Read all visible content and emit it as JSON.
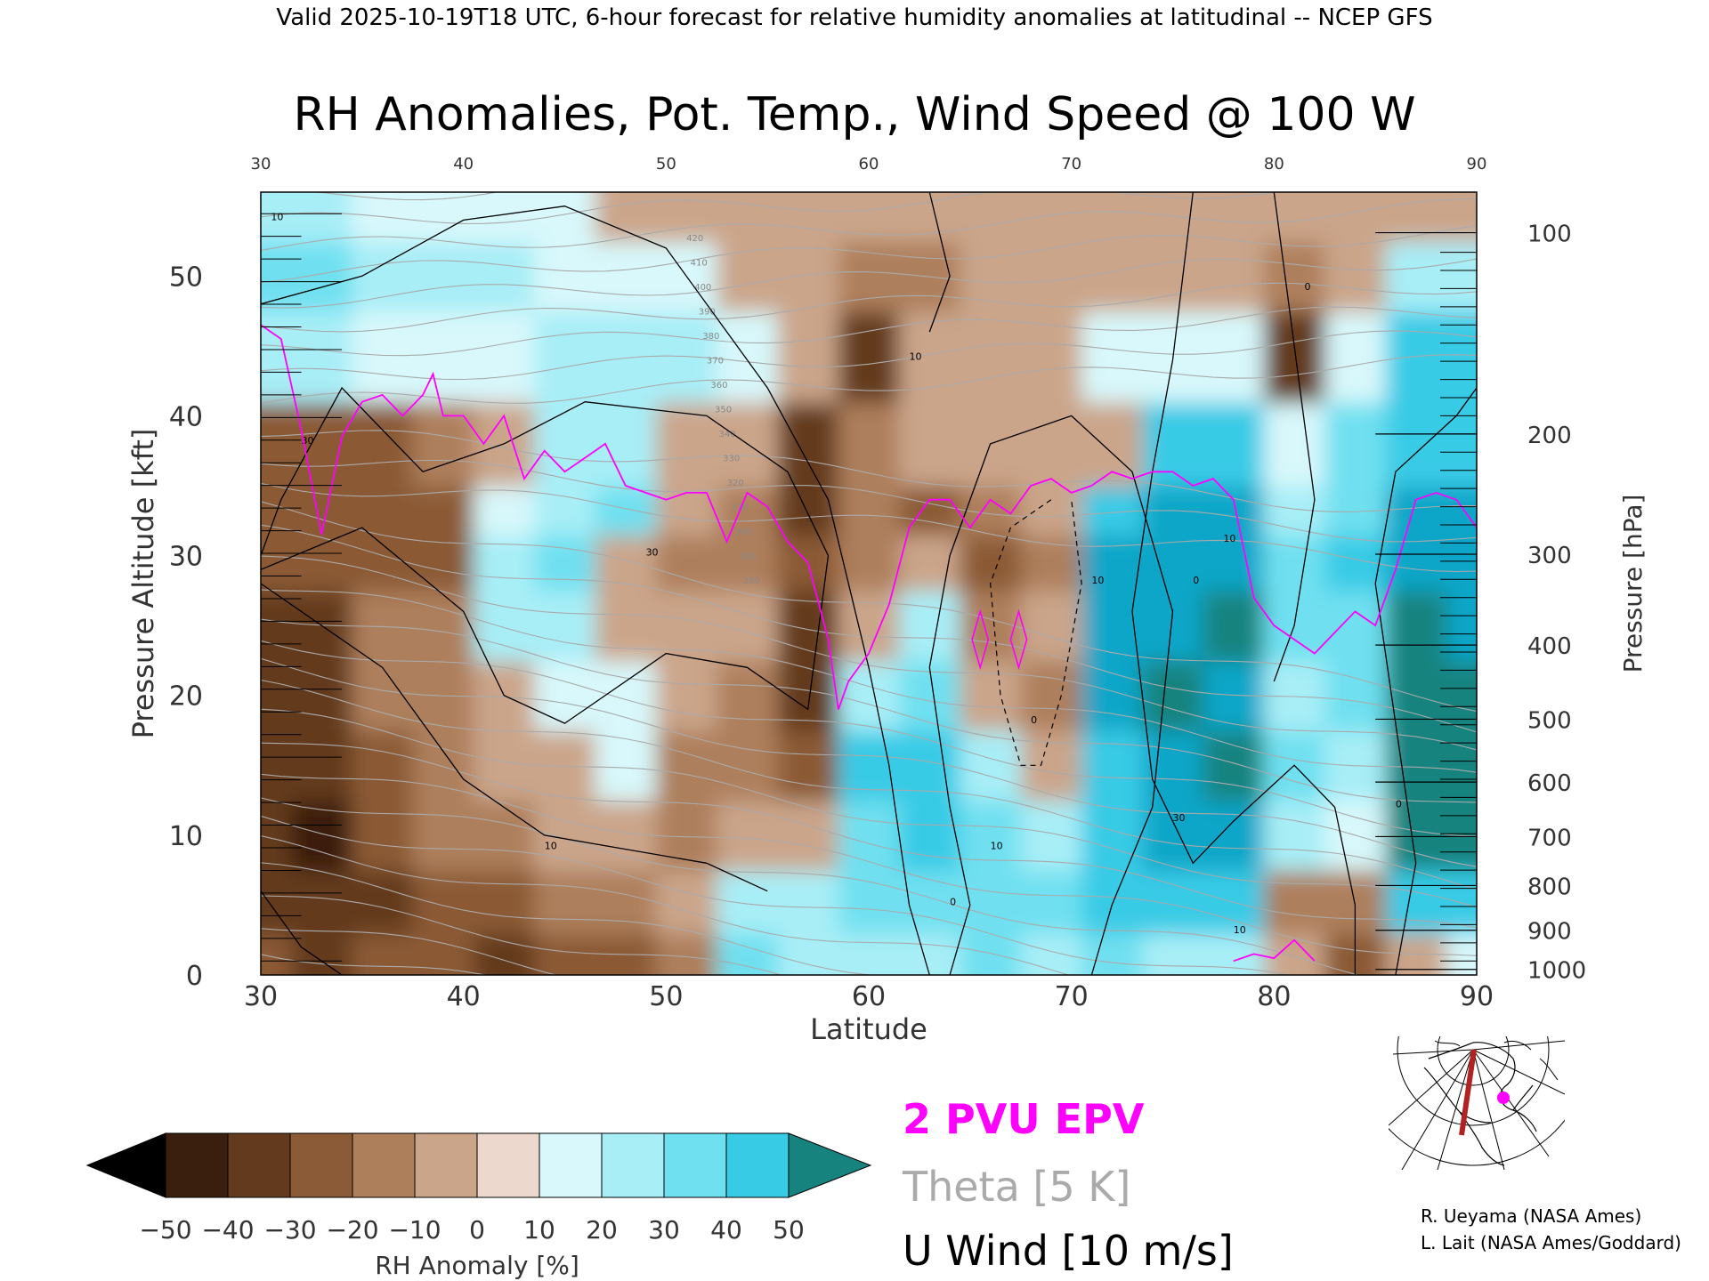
{
  "header": "Valid 2025-10-19T18 UTC, 6-hour forecast for relative humidity anomalies at latitudinal -- NCEP GFS",
  "title": "RH Anomalies, Pot. Temp., Wind Speed @ 100 W",
  "chart_data": {
    "type": "heatmap",
    "xlabel": "Latitude",
    "ylabel_left": "Pressure Altitude [kft]",
    "ylabel_right": "Pressure [hPa]",
    "xlim": [
      30,
      90
    ],
    "ylim": [
      0,
      56
    ],
    "x_ticks": [
      "30",
      "40",
      "50",
      "60",
      "70",
      "80",
      "90"
    ],
    "y_ticks_left": [
      "0",
      "10",
      "20",
      "30",
      "40",
      "50"
    ],
    "y_ticks_right": [
      {
        "label": "100",
        "kft": 53.1
      },
      {
        "label": "200",
        "kft": 38.7
      },
      {
        "label": "300",
        "kft": 30.1
      },
      {
        "label": "400",
        "kft": 23.6
      },
      {
        "label": "500",
        "kft": 18.3
      },
      {
        "label": "600",
        "kft": 13.8
      },
      {
        "label": "700",
        "kft": 9.9
      },
      {
        "label": "800",
        "kft": 6.4
      },
      {
        "label": "900",
        "kft": 3.2
      },
      {
        "label": "1000",
        "kft": 0.4
      }
    ],
    "anomaly_columns": [
      {
        "lat": 30,
        "rh": [
          -28,
          -35,
          -40,
          -38,
          -35,
          -32,
          -30,
          -28,
          -25,
          10,
          20,
          15
        ]
      },
      {
        "lat": 33,
        "rh": [
          -35,
          -40,
          -42,
          -40,
          -38,
          -35,
          -30,
          -28,
          -30,
          12,
          20,
          10
        ]
      },
      {
        "lat": 36,
        "rh": [
          -30,
          -35,
          -30,
          -25,
          -20,
          -20,
          -22,
          -25,
          -25,
          5,
          15,
          8
        ]
      },
      {
        "lat": 39,
        "rh": [
          -25,
          -25,
          -20,
          -15,
          -15,
          -18,
          -28,
          -25,
          -20,
          5,
          10,
          5
        ]
      },
      {
        "lat": 42,
        "rh": [
          -35,
          -25,
          -15,
          -10,
          -5,
          15,
          10,
          5,
          -5,
          5,
          10,
          3
        ]
      },
      {
        "lat": 45,
        "rh": [
          -30,
          -20,
          -10,
          -5,
          5,
          15,
          20,
          15,
          10,
          15,
          8,
          0
        ]
      },
      {
        "lat": 48,
        "rh": [
          -25,
          -15,
          -10,
          0,
          5,
          -5,
          -10,
          20,
          15,
          10,
          5,
          -2
        ]
      },
      {
        "lat": 51,
        "rh": [
          -20,
          -10,
          -15,
          -20,
          -10,
          -10,
          -15,
          -10,
          -5,
          10,
          3,
          -5
        ]
      },
      {
        "lat": 54,
        "rh": [
          20,
          15,
          -10,
          -20,
          -15,
          -10,
          -20,
          -15,
          -10,
          0,
          -5,
          -8
        ]
      },
      {
        "lat": 57,
        "rh": [
          15,
          10,
          -10,
          -30,
          -35,
          -40,
          -30,
          -40,
          -35,
          -10,
          -10,
          -10
        ]
      },
      {
        "lat": 60,
        "rh": [
          15,
          20,
          25,
          35,
          15,
          -5,
          -15,
          -20,
          -15,
          -35,
          -15,
          -10
        ]
      },
      {
        "lat": 63,
        "rh": [
          15,
          25,
          35,
          30,
          20,
          15,
          -10,
          -25,
          -10,
          -5,
          -15,
          -10
        ]
      },
      {
        "lat": 66,
        "rh": [
          20,
          25,
          20,
          10,
          -10,
          -15,
          -30,
          -15,
          -5,
          -10,
          -10,
          -10
        ]
      },
      {
        "lat": 69,
        "rh": [
          15,
          20,
          15,
          -10,
          -15,
          -10,
          -15,
          -10,
          -10,
          -5,
          -10,
          -8
        ]
      },
      {
        "lat": 72,
        "rh": [
          20,
          30,
          30,
          35,
          40,
          40,
          45,
          30,
          -5,
          0,
          -5,
          -6
        ]
      },
      {
        "lat": 75,
        "rh": [
          15,
          30,
          45,
          48,
          50,
          45,
          45,
          40,
          30,
          5,
          -5,
          -5
        ]
      },
      {
        "lat": 78,
        "rh": [
          10,
          30,
          45,
          55,
          48,
          50,
          45,
          45,
          35,
          0,
          -5,
          -5
        ]
      },
      {
        "lat": 81,
        "rh": [
          -10,
          -15,
          10,
          20,
          15,
          20,
          25,
          15,
          5,
          -35,
          -20,
          -8
        ]
      },
      {
        "lat": 84,
        "rh": [
          -25,
          -15,
          5,
          15,
          20,
          25,
          30,
          25,
          20,
          0,
          -10,
          -6
        ]
      },
      {
        "lat": 87,
        "rh": [
          -10,
          30,
          55,
          55,
          50,
          50,
          45,
          40,
          35,
          30,
          15,
          -4
        ]
      },
      {
        "lat": 90,
        "rh": [
          5,
          35,
          55,
          58,
          50,
          45,
          42,
          40,
          35,
          30,
          10,
          -4
        ]
      }
    ],
    "anomaly_levels_kft": [
      1,
      5,
      10,
      15,
      20,
      25,
      30,
      33,
      37,
      45,
      50,
      55
    ],
    "epv_2pvu_kft": [
      [
        30,
        46.5
      ],
      [
        31,
        45.5
      ],
      [
        32,
        39
      ],
      [
        33,
        31.5
      ],
      [
        34,
        38.5
      ],
      [
        35,
        41
      ],
      [
        36,
        41.5
      ],
      [
        37,
        40
      ],
      [
        38,
        41.5
      ],
      [
        38.5,
        43
      ],
      [
        39,
        40
      ],
      [
        40,
        40
      ],
      [
        41,
        38
      ],
      [
        42,
        40
      ],
      [
        43,
        35.5
      ],
      [
        44,
        37.5
      ],
      [
        45,
        36
      ],
      [
        46,
        37
      ],
      [
        47,
        38
      ],
      [
        48,
        35
      ],
      [
        49,
        34.5
      ],
      [
        50,
        34
      ],
      [
        51,
        34.5
      ],
      [
        52,
        34.5
      ],
      [
        53,
        31
      ],
      [
        54,
        34.5
      ],
      [
        55,
        33.5
      ],
      [
        56,
        31
      ],
      [
        57,
        29.5
      ],
      [
        58,
        24
      ],
      [
        58.5,
        19
      ],
      [
        59,
        21
      ],
      [
        60,
        23
      ],
      [
        61,
        26.5
      ],
      [
        62,
        32
      ],
      [
        63,
        34
      ],
      [
        64,
        34
      ],
      [
        65,
        32
      ],
      [
        66,
        34
      ],
      [
        67,
        33
      ],
      [
        68,
        35
      ],
      [
        69,
        35.5
      ],
      [
        70,
        34.5
      ],
      [
        71,
        35
      ],
      [
        72,
        36
      ],
      [
        73,
        35.5
      ],
      [
        74,
        36
      ],
      [
        75,
        36
      ],
      [
        76,
        35
      ],
      [
        77,
        35.5
      ],
      [
        78,
        34
      ],
      [
        79,
        27
      ],
      [
        80,
        25
      ],
      [
        81,
        24
      ],
      [
        82,
        23
      ],
      [
        83,
        24.5
      ],
      [
        84,
        26
      ],
      [
        85,
        25
      ],
      [
        86,
        29
      ],
      [
        87,
        34
      ],
      [
        88,
        34.5
      ],
      [
        89,
        34
      ],
      [
        90,
        32
      ]
    ],
    "epv_low_segment_kft": [
      [
        78,
        1
      ],
      [
        79,
        1.5
      ],
      [
        80,
        1.2
      ],
      [
        81,
        2.5
      ],
      [
        82,
        1
      ]
    ],
    "theta_labels": [
      "420",
      "410",
      "400",
      "390",
      "380",
      "370",
      "360",
      "350",
      "340",
      "330",
      "320",
      "310",
      "300",
      "290",
      "280"
    ],
    "u_wind_labels": [
      "10",
      "30",
      "10",
      "30",
      "0",
      "10",
      "0",
      "10",
      "30",
      "10",
      "0",
      "0",
      "10",
      "0",
      "10"
    ],
    "legend": {
      "epv": "2 PVU EPV",
      "theta": "Theta [5 K]",
      "uwind": "U Wind [10 m/s]"
    },
    "colorbar": {
      "label": "RH Anomaly [%]",
      "ticks": [
        "−50",
        "−40",
        "−30",
        "−20",
        "−10",
        "0",
        "10",
        "20",
        "30",
        "40",
        "50"
      ],
      "colors": [
        "#000000",
        "#3a1f0e",
        "#633a1d",
        "#8b5a36",
        "#ae7f5b",
        "#cba58a",
        "#ecd8cc",
        "#d8f8fb",
        "#a8eef7",
        "#6fe0f0",
        "#38cbe6",
        "#0aa6c8",
        "#17837f"
      ]
    },
    "colors": {
      "epv": "#ff00ff",
      "theta": "#aaaaaa",
      "uwind": "#000000"
    }
  },
  "credits": [
    "R. Ueyama (NASA Ames)",
    "L. Lait (NASA Ames/Goddard)"
  ]
}
